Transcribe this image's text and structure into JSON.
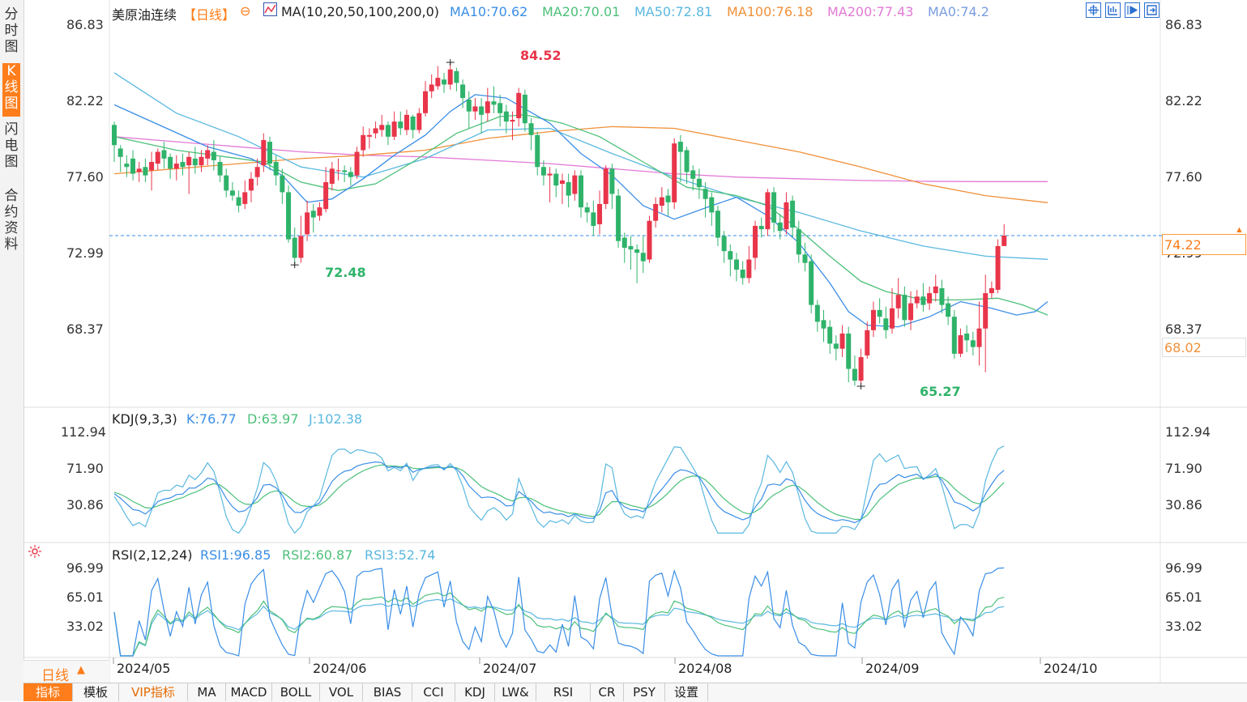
{
  "sidebar": {
    "tabs": [
      {
        "label": "分时图"
      },
      {
        "label": "K线图"
      },
      {
        "label": "闪电图"
      },
      {
        "label": "合约资料"
      }
    ]
  },
  "header": {
    "instrument": "美原油连续",
    "period_badge": "【日线】",
    "ma_params": "MA(10,20,50,100,200,0)",
    "ma10": "MA10:70.62",
    "ma20": "MA20:70.01",
    "ma50": "MA50:72.81",
    "ma100": "MA100:76.18",
    "ma200": "MA200:77.43",
    "ma0": "MA0:74.2"
  },
  "colors": {
    "up": "#e8354a",
    "down": "#2fb36a",
    "ma10": "#3a8ee6",
    "ma20": "#4cc07a",
    "ma50": "#5ab8e0",
    "ma100": "#f0913a",
    "ma200": "#e27ad6",
    "ma0": "#7a9ee0",
    "price_line": "#3a8ee6",
    "accent": "#ff7d1a"
  },
  "price_axis": {
    "ticks": [
      "86.83",
      "82.22",
      "77.60",
      "72.99",
      "68.37"
    ],
    "current_price": "74.22",
    "ma100_marker": "68.02",
    "high_marker": "84.52",
    "low_marker_1": "72.48",
    "low_marker_2": "65.27"
  },
  "kdj": {
    "params": "KDJ(9,3,3)",
    "k": "K:76.77",
    "d": "D:63.97",
    "j": "J:102.38",
    "ticks": [
      "112.94",
      "71.90",
      "30.86"
    ]
  },
  "rsi": {
    "params": "RSI(2,12,24)",
    "rsi1": "RSI1:96.85",
    "rsi2": "RSI2:60.87",
    "rsi3": "RSI3:52.74",
    "ticks": [
      "96.99",
      "65.01",
      "33.02"
    ]
  },
  "time_axis": {
    "period_label": "日线",
    "period_arrow": "▲",
    "dates": [
      "2024/05",
      "2024/06",
      "2024/07",
      "2024/08",
      "2024/09",
      "2024/10"
    ]
  },
  "bottom_tabs": [
    "指标",
    "模板",
    "VIP指标",
    "MA",
    "MACD",
    "BOLL",
    "VOL",
    "BIAS",
    "CCI",
    "KDJ",
    "LW&",
    "RSI",
    "CR",
    "PSY",
    "设置"
  ],
  "chart_data": {
    "type": "candlestick",
    "y_range": [
      64.5,
      87.6
    ],
    "candles": [
      [
        80.8,
        79.6,
        81.0,
        78.6
      ],
      [
        79.4,
        78.9,
        79.6,
        78.0
      ],
      [
        78.5,
        78.3,
        79.0,
        77.7
      ],
      [
        78.8,
        77.9,
        79.3,
        77.5
      ],
      [
        78.0,
        78.2,
        78.6,
        77.4
      ],
      [
        78.3,
        77.8,
        78.8,
        77.4
      ],
      [
        78.1,
        78.6,
        79.2,
        76.9
      ],
      [
        78.5,
        79.2,
        79.4,
        78.1
      ],
      [
        79.3,
        78.8,
        79.8,
        78.2
      ],
      [
        78.9,
        78.2,
        79.1,
        77.6
      ],
      [
        78.2,
        78.5,
        79.0,
        77.5
      ],
      [
        78.6,
        78.3,
        79.1,
        77.8
      ],
      [
        78.4,
        78.9,
        79.2,
        76.7
      ],
      [
        78.8,
        78.4,
        79.5,
        77.9
      ],
      [
        78.4,
        78.9,
        79.3,
        78.0
      ],
      [
        78.8,
        79.3,
        79.6,
        78.4
      ],
      [
        79.2,
        78.7,
        79.9,
        78.1
      ],
      [
        78.6,
        77.8,
        78.9,
        77.4
      ],
      [
        77.8,
        76.9,
        78.2,
        76.5
      ],
      [
        76.9,
        76.6,
        77.4,
        76.3
      ],
      [
        76.5,
        76.0,
        76.9,
        75.6
      ],
      [
        76.1,
        76.8,
        77.5,
        75.8
      ],
      [
        76.9,
        77.6,
        78.0,
        76.2
      ],
      [
        77.7,
        78.3,
        78.8,
        77.2
      ],
      [
        78.4,
        79.9,
        80.3,
        78.0
      ],
      [
        79.8,
        78.5,
        80.1,
        78.1
      ],
      [
        78.6,
        77.8,
        79.0,
        77.2
      ],
      [
        77.8,
        76.8,
        78.2,
        76.1
      ],
      [
        76.8,
        74.0,
        77.2,
        73.8
      ],
      [
        74.1,
        72.9,
        74.7,
        72.5
      ],
      [
        72.9,
        74.2,
        75.4,
        72.6
      ],
      [
        74.3,
        75.6,
        76.3,
        73.9
      ],
      [
        75.7,
        75.3,
        76.1,
        74.4
      ],
      [
        75.4,
        75.9,
        76.2,
        75.1
      ],
      [
        75.8,
        77.4,
        78.3,
        75.6
      ],
      [
        77.3,
        78.2,
        78.6,
        76.9
      ],
      [
        78.1,
        78.1,
        78.8,
        77.5
      ],
      [
        78.1,
        78.0,
        78.4,
        77.4
      ],
      [
        78.0,
        77.7,
        78.3,
        77.2
      ],
      [
        77.8,
        79.2,
        79.5,
        77.6
      ],
      [
        79.3,
        80.2,
        80.7,
        78.9
      ],
      [
        80.1,
        80.2,
        80.6,
        79.4
      ],
      [
        80.3,
        80.6,
        81.0,
        80.0
      ],
      [
        80.5,
        80.8,
        81.4,
        80.1
      ],
      [
        80.8,
        80.1,
        81.0,
        79.6
      ],
      [
        80.1,
        81.0,
        81.6,
        79.9
      ],
      [
        81.0,
        80.6,
        81.6,
        80.2
      ],
      [
        80.5,
        81.4,
        81.7,
        80.2
      ],
      [
        81.3,
        80.5,
        81.4,
        80.0
      ],
      [
        80.5,
        81.5,
        81.8,
        80.3
      ],
      [
        81.5,
        82.8,
        83.4,
        81.3
      ],
      [
        82.8,
        83.2,
        83.8,
        82.4
      ],
      [
        83.1,
        83.6,
        84.3,
        82.9
      ],
      [
        83.5,
        83.2,
        83.9,
        82.7
      ],
      [
        83.2,
        84.1,
        84.5,
        82.9
      ],
      [
        84.0,
        83.3,
        84.2,
        82.8
      ],
      [
        83.2,
        82.4,
        83.5,
        81.8
      ],
      [
        82.3,
        81.6,
        82.8,
        80.6
      ],
      [
        81.6,
        81.9,
        82.4,
        81.1
      ],
      [
        81.9,
        81.4,
        82.4,
        80.3
      ],
      [
        81.5,
        82.2,
        83.0,
        81.0
      ],
      [
        82.2,
        82.0,
        83.1,
        81.5
      ],
      [
        82.1,
        81.5,
        82.6,
        80.7
      ],
      [
        81.6,
        81.0,
        82.0,
        80.3
      ],
      [
        81.0,
        81.1,
        81.6,
        79.9
      ],
      [
        81.2,
        82.7,
        83.0,
        80.7
      ],
      [
        82.6,
        80.9,
        82.9,
        80.4
      ],
      [
        80.9,
        80.2,
        81.2,
        79.3
      ],
      [
        80.2,
        78.3,
        80.4,
        77.8
      ],
      [
        78.3,
        77.8,
        78.7,
        77.2
      ],
      [
        77.8,
        77.9,
        78.3,
        76.2
      ],
      [
        77.9,
        77.2,
        78.2,
        76.5
      ],
      [
        77.3,
        77.5,
        77.9,
        76.1
      ],
      [
        77.4,
        76.6,
        77.9,
        75.9
      ],
      [
        76.7,
        77.8,
        78.1,
        76.3
      ],
      [
        77.8,
        75.9,
        78.1,
        75.3
      ],
      [
        75.9,
        75.6,
        76.2,
        75.0
      ],
      [
        75.6,
        74.8,
        76.3,
        74.2
      ],
      [
        74.9,
        76.1,
        76.9,
        74.3
      ],
      [
        76.1,
        78.2,
        78.4,
        75.8
      ],
      [
        78.2,
        76.7,
        78.5,
        75.8
      ],
      [
        76.6,
        73.9,
        77.0,
        73.5
      ],
      [
        74.1,
        73.5,
        74.4,
        72.6
      ],
      [
        73.6,
        73.4,
        74.2,
        72.2
      ],
      [
        73.4,
        73.2,
        73.7,
        71.4
      ],
      [
        73.2,
        72.7,
        74.2,
        72.0
      ],
      [
        72.8,
        75.1,
        75.4,
        72.6
      ],
      [
        75.1,
        76.1,
        76.5,
        74.7
      ],
      [
        76.0,
        76.5,
        77.1,
        75.6
      ],
      [
        76.6,
        76.2,
        77.0,
        75.4
      ],
      [
        76.2,
        79.7,
        80.0,
        75.8
      ],
      [
        79.8,
        79.2,
        80.2,
        77.4
      ],
      [
        79.3,
        78.0,
        79.5,
        77.3
      ],
      [
        78.1,
        77.6,
        78.4,
        76.9
      ],
      [
        77.6,
        77.1,
        78.2,
        76.4
      ],
      [
        77.0,
        76.4,
        77.4,
        75.3
      ],
      [
        76.5,
        75.6,
        76.8,
        74.8
      ],
      [
        75.7,
        74.1,
        76.0,
        73.6
      ],
      [
        74.2,
        73.3,
        74.5,
        72.6
      ],
      [
        73.3,
        72.8,
        73.7,
        71.8
      ],
      [
        72.8,
        72.2,
        73.2,
        71.5
      ],
      [
        72.2,
        71.7,
        72.7,
        71.3
      ],
      [
        71.7,
        72.8,
        73.6,
        71.4
      ],
      [
        72.9,
        74.8,
        75.1,
        72.2
      ],
      [
        74.8,
        74.6,
        75.3,
        74.1
      ],
      [
        74.6,
        76.8,
        77.0,
        74.2
      ],
      [
        76.8,
        75.0,
        77.1,
        74.4
      ],
      [
        75.0,
        74.5,
        75.5,
        74.0
      ],
      [
        74.6,
        76.2,
        76.8,
        74.3
      ],
      [
        76.3,
        74.7,
        76.6,
        74.1
      ],
      [
        74.6,
        73.1,
        75.1,
        72.6
      ],
      [
        73.1,
        72.6,
        73.8,
        72.1
      ],
      [
        72.7,
        70.1,
        73.1,
        69.6
      ],
      [
        70.1,
        69.1,
        70.4,
        68.5
      ],
      [
        69.2,
        68.7,
        69.8,
        67.9
      ],
      [
        68.8,
        67.8,
        69.2,
        67.2
      ],
      [
        67.8,
        67.5,
        68.3,
        66.8
      ],
      [
        67.5,
        68.4,
        68.9,
        67.0
      ],
      [
        68.4,
        66.3,
        68.8,
        65.5
      ],
      [
        66.3,
        65.6,
        67.1,
        65.3
      ],
      [
        65.6,
        67.0,
        67.5,
        65.4
      ],
      [
        67.1,
        68.6,
        69.1,
        66.9
      ],
      [
        68.6,
        69.8,
        70.3,
        68.2
      ],
      [
        69.8,
        69.4,
        70.5,
        69.0
      ],
      [
        69.3,
        68.6,
        70.0,
        68.1
      ],
      [
        68.7,
        69.9,
        71.1,
        68.4
      ],
      [
        69.9,
        70.7,
        71.7,
        69.3
      ],
      [
        70.7,
        69.2,
        71.2,
        68.8
      ],
      [
        69.2,
        70.2,
        70.9,
        68.6
      ],
      [
        70.2,
        70.6,
        71.0,
        69.9
      ],
      [
        70.6,
        70.1,
        71.4,
        69.7
      ],
      [
        70.2,
        70.8,
        71.2,
        69.8
      ],
      [
        70.8,
        71.2,
        71.9,
        70.3
      ],
      [
        71.1,
        70.1,
        71.6,
        69.6
      ],
      [
        70.2,
        69.4,
        70.6,
        68.9
      ],
      [
        69.4,
        67.2,
        69.8,
        66.9
      ],
      [
        67.2,
        68.3,
        68.7,
        67.0
      ],
      [
        68.4,
        68.0,
        68.9,
        67.3
      ],
      [
        68.0,
        67.6,
        68.5,
        67.1
      ],
      [
        67.6,
        68.7,
        70.3,
        66.5
      ],
      [
        68.7,
        70.8,
        71.9,
        66.1
      ],
      [
        70.8,
        71.1,
        71.5,
        70.5
      ],
      [
        71.0,
        73.6,
        74.0,
        70.8
      ],
      [
        73.6,
        74.22,
        74.9,
        73.6
      ]
    ],
    "ma_lines": {
      "ma10": [
        [
          0,
          82.0
        ],
        [
          15,
          79.5
        ],
        [
          22,
          78.8
        ],
        [
          27,
          77.8
        ],
        [
          31,
          76.2
        ],
        [
          35,
          76.4
        ],
        [
          40,
          77.6
        ],
        [
          45,
          79.0
        ],
        [
          50,
          80.2
        ],
        [
          54,
          81.6
        ],
        [
          58,
          82.6
        ],
        [
          63,
          82.4
        ],
        [
          70,
          80.9
        ],
        [
          75,
          79.1
        ],
        [
          80,
          77.8
        ],
        [
          85,
          76.0
        ],
        [
          90,
          75.2
        ],
        [
          96,
          76.0
        ],
        [
          100,
          76.5
        ],
        [
          105,
          75.4
        ],
        [
          110,
          73.8
        ],
        [
          115,
          71.4
        ],
        [
          118,
          69.7
        ],
        [
          121,
          68.9
        ],
        [
          126,
          68.8
        ],
        [
          131,
          69.4
        ],
        [
          136,
          70.3
        ],
        [
          141,
          69.9
        ],
        [
          145,
          69.5
        ],
        [
          148,
          69.7
        ],
        [
          150,
          70.3
        ]
      ],
      "ma20": [
        [
          0,
          80.1
        ],
        [
          10,
          79.3
        ],
        [
          18,
          78.9
        ],
        [
          24,
          78.6
        ],
        [
          30,
          77.4
        ],
        [
          36,
          76.9
        ],
        [
          42,
          77.3
        ],
        [
          48,
          78.6
        ],
        [
          55,
          80.3
        ],
        [
          62,
          81.3
        ],
        [
          66,
          81.4
        ],
        [
          72,
          80.9
        ],
        [
          78,
          80.1
        ],
        [
          85,
          78.6
        ],
        [
          92,
          77.1
        ],
        [
          100,
          76.6
        ],
        [
          105,
          76.0
        ],
        [
          110,
          74.6
        ],
        [
          115,
          73.0
        ],
        [
          120,
          71.5
        ],
        [
          124,
          70.9
        ],
        [
          130,
          70.4
        ],
        [
          136,
          70.4
        ],
        [
          142,
          70.5
        ],
        [
          146,
          70.1
        ],
        [
          150,
          69.5
        ]
      ],
      "ma50": [
        [
          0,
          83.9
        ],
        [
          10,
          81.5
        ],
        [
          20,
          80.1
        ],
        [
          30,
          78.3
        ],
        [
          40,
          77.7
        ],
        [
          50,
          78.8
        ],
        [
          60,
          80.5
        ],
        [
          70,
          80.6
        ],
        [
          80,
          79.1
        ],
        [
          90,
          77.7
        ],
        [
          100,
          76.5
        ],
        [
          110,
          75.6
        ],
        [
          120,
          74.5
        ],
        [
          130,
          73.6
        ],
        [
          140,
          73.0
        ],
        [
          150,
          72.81
        ]
      ],
      "ma100": [
        [
          0,
          77.9
        ],
        [
          10,
          78.2
        ],
        [
          20,
          78.5
        ],
        [
          30,
          78.8
        ],
        [
          40,
          79.0
        ],
        [
          50,
          79.3
        ],
        [
          60,
          80.0
        ],
        [
          70,
          80.4
        ],
        [
          80,
          80.7
        ],
        [
          90,
          80.6
        ],
        [
          100,
          79.9
        ],
        [
          110,
          79.2
        ],
        [
          120,
          78.3
        ],
        [
          130,
          77.3
        ],
        [
          140,
          76.6
        ],
        [
          150,
          76.18
        ]
      ],
      "ma200": [
        [
          0,
          80.1
        ],
        [
          10,
          79.8
        ],
        [
          20,
          79.5
        ],
        [
          30,
          79.2
        ],
        [
          40,
          79.0
        ],
        [
          50,
          78.9
        ],
        [
          60,
          78.7
        ],
        [
          70,
          78.5
        ],
        [
          80,
          78.2
        ],
        [
          90,
          77.9
        ],
        [
          100,
          77.7
        ],
        [
          110,
          77.6
        ],
        [
          120,
          77.5
        ],
        [
          130,
          77.45
        ],
        [
          140,
          77.43
        ],
        [
          150,
          77.43
        ]
      ]
    }
  }
}
